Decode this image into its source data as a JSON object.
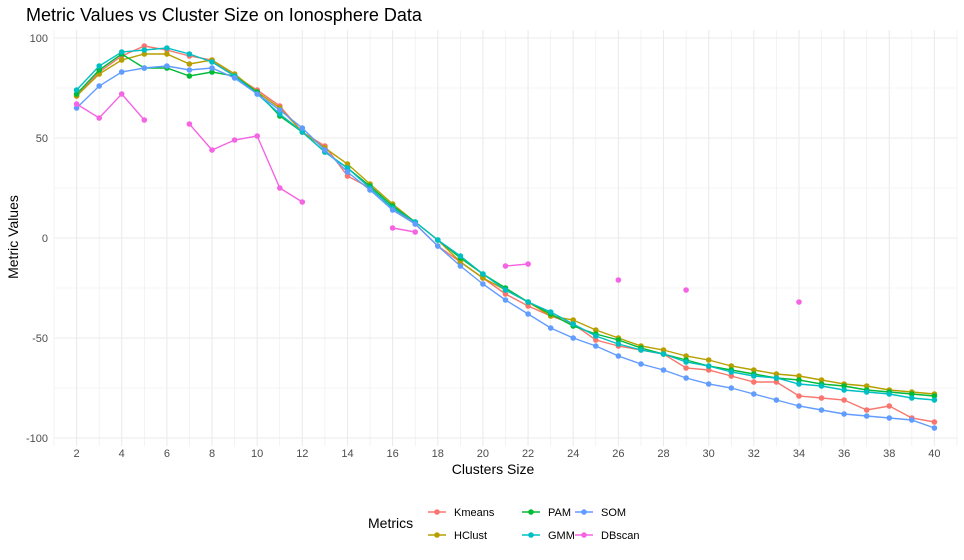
{
  "chart_data": {
    "type": "line",
    "title": "Metric Values vs Cluster Size on Ionosphere Data",
    "xlabel": "Clusters Size",
    "ylabel": "Metric Values",
    "xlim": [
      1,
      41
    ],
    "ylim": [
      -104,
      104
    ],
    "x_ticks": [
      2,
      4,
      6,
      8,
      10,
      12,
      14,
      16,
      18,
      20,
      22,
      24,
      26,
      28,
      30,
      32,
      34,
      36,
      38,
      40
    ],
    "y_ticks": [
      100,
      50,
      0,
      -50,
      -100
    ],
    "grid": true,
    "legend_title": "Metrics",
    "legend_position": "bottom",
    "x": [
      2,
      3,
      4,
      5,
      6,
      7,
      8,
      9,
      10,
      11,
      12,
      13,
      14,
      15,
      16,
      17,
      18,
      19,
      20,
      21,
      22,
      23,
      24,
      25,
      26,
      27,
      28,
      29,
      30,
      31,
      32,
      33,
      34,
      35,
      36,
      37,
      38,
      39,
      40
    ],
    "series": [
      {
        "name": "Kmeans",
        "color": "#F8766D",
        "values": [
          71,
          83,
          91,
          96,
          94,
          91,
          89,
          81,
          74,
          66,
          53,
          46,
          31,
          25,
          15,
          7,
          -4,
          -12,
          -20,
          -28,
          -34,
          -39,
          -43,
          -51,
          -54,
          -56,
          -58,
          -65,
          -66,
          -69,
          -72,
          -72,
          -79,
          -80,
          -81,
          -86,
          -84,
          -90,
          -92
        ]
      },
      {
        "name": "HClust",
        "color": "#B79F00",
        "values": [
          71,
          82,
          89,
          92,
          92,
          87,
          89,
          82,
          73,
          65,
          53,
          45,
          37,
          27,
          17,
          8,
          -1,
          -12,
          -20,
          -26,
          -32,
          -39,
          -41,
          -46,
          -50,
          -54,
          -56,
          -59,
          -61,
          -64,
          -66,
          -68,
          -69,
          -71,
          -73,
          -74,
          -76,
          -77,
          -78
        ]
      },
      {
        "name": "PAM",
        "color": "#00BA38",
        "values": [
          72,
          84,
          92,
          85,
          85,
          81,
          83,
          81,
          73,
          61,
          53,
          43,
          35,
          26,
          16,
          8,
          -1,
          -10,
          -18,
          -25,
          -32,
          -38,
          -44,
          -48,
          -51,
          -55,
          -58,
          -61,
          -64,
          -66,
          -68,
          -70,
          -71,
          -73,
          -74,
          -76,
          -77,
          -78,
          -79
        ]
      },
      {
        "name": "GMM",
        "color": "#00BFC4",
        "values": [
          74,
          86,
          93,
          94,
          95,
          92,
          88,
          81,
          72,
          62,
          53,
          43,
          35,
          25,
          15,
          8,
          -1,
          -9,
          -18,
          -26,
          -32,
          -37,
          -43,
          -49,
          -53,
          -56,
          -58,
          -62,
          -64,
          -67,
          -69,
          -70,
          -73,
          -74,
          -76,
          -77,
          -78,
          -80,
          -81
        ]
      },
      {
        "name": "SOM",
        "color": "#619CFF",
        "values": [
          65,
          76,
          83,
          85,
          86,
          84,
          85,
          80,
          72,
          64,
          55,
          44,
          33,
          24,
          14,
          7,
          -4,
          -14,
          -23,
          -31,
          -38,
          -45,
          -50,
          -54,
          -59,
          -63,
          -66,
          -70,
          -73,
          -75,
          -78,
          -81,
          -84,
          -86,
          -88,
          -89,
          -90,
          -91,
          -95
        ]
      },
      {
        "name": "DBscan",
        "color": "#F564E3",
        "values": [
          67,
          60,
          72,
          59,
          null,
          57,
          44,
          49,
          51,
          25,
          18,
          null,
          null,
          null,
          5,
          3,
          null,
          null,
          null,
          -14,
          -13,
          null,
          null,
          null,
          -21,
          null,
          null,
          -26,
          null,
          null,
          null,
          null,
          -32,
          null,
          null,
          null,
          null,
          null,
          null
        ]
      }
    ]
  }
}
